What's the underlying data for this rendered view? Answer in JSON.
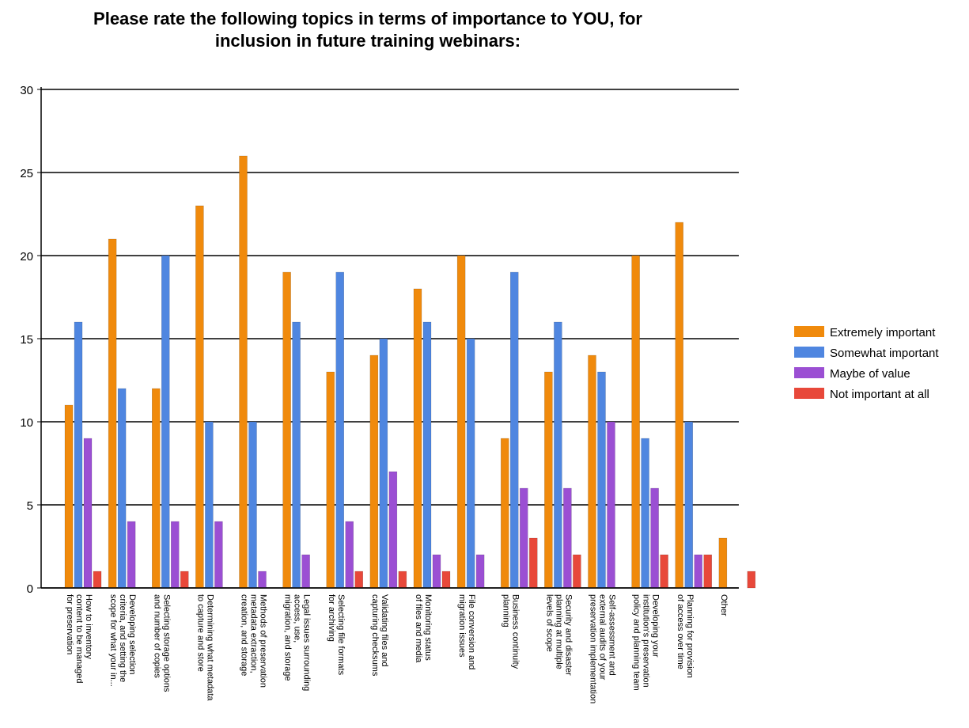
{
  "chart_data": {
    "type": "bar",
    "title": [
      "Please rate the following topics in terms of importance to YOU, for",
      "inclusion in future training webinars:"
    ],
    "xlabel": "",
    "ylabel": "",
    "ylim": [
      0,
      30
    ],
    "yticks": [
      0,
      5,
      10,
      15,
      20,
      25,
      30
    ],
    "grid": true,
    "legend_position": "right",
    "categories": [
      [
        "How to inventory",
        "content to be managed",
        "for preservation"
      ],
      [
        "Developing selection",
        "criteria, and setting the",
        "scope for what your in..."
      ],
      [
        "Selecting storage options",
        "and number of copies"
      ],
      [
        "Determining what metadata",
        "to capture and store"
      ],
      [
        "Methods of preservation",
        "metadata extraction,",
        "creation, and storage"
      ],
      [
        "Legal issues surrounding",
        "access, use,",
        "migration, and storage"
      ],
      [
        "Selecting file formats",
        "for archiving"
      ],
      [
        "Validating files and",
        "capturing checksums"
      ],
      [
        "Monitoring status",
        "of files and media"
      ],
      [
        "File conversion and",
        "migration issues"
      ],
      [
        "Business continuity",
        "planning"
      ],
      [
        "Security and disaster",
        "planning at multiple",
        "levels of scope"
      ],
      [
        "Self-assessment and",
        "external audits of your",
        "preservation implementation"
      ],
      [
        "Developing your",
        "institution's preservation",
        "policy and planning team"
      ],
      [
        "Planning for provision",
        "of access over time"
      ],
      [
        "Other"
      ]
    ],
    "series": [
      {
        "name": "Extremely important",
        "color": "#F08A0C",
        "values": [
          11,
          21,
          12,
          23,
          26,
          19,
          13,
          14,
          18,
          20,
          9,
          13,
          14,
          20,
          22,
          3
        ]
      },
      {
        "name": "Somewhat important",
        "color": "#4F86E0",
        "values": [
          16,
          12,
          20,
          10,
          10,
          16,
          19,
          15,
          16,
          15,
          19,
          16,
          13,
          9,
          10,
          0
        ]
      },
      {
        "name": "Maybe of value",
        "color": "#9B4FD3",
        "values": [
          9,
          4,
          4,
          4,
          1,
          2,
          4,
          7,
          2,
          2,
          6,
          6,
          10,
          6,
          2,
          0
        ]
      },
      {
        "name": "Not important at all",
        "color": "#E8483A",
        "values": [
          1,
          0,
          1,
          0,
          0,
          0,
          1,
          1,
          1,
          0,
          3,
          2,
          0,
          2,
          2,
          1
        ]
      }
    ]
  }
}
